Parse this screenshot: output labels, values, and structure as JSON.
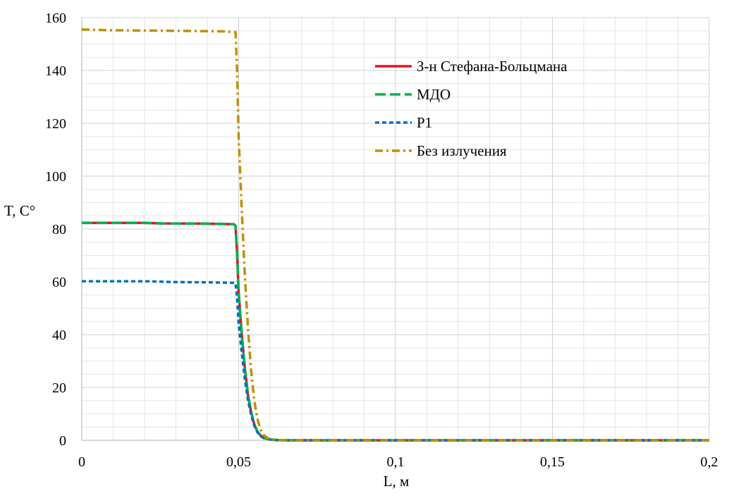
{
  "chart_data": {
    "type": "line",
    "title": "",
    "xlabel": "L, м",
    "ylabel": "T, C°",
    "xlim": [
      0,
      0.2
    ],
    "ylim": [
      0,
      160
    ],
    "x_ticks": [
      0,
      0.05,
      0.1,
      0.15,
      0.2
    ],
    "x_tick_labels": [
      "0",
      "0,05",
      "0,1",
      "0,15",
      "0,2"
    ],
    "y_ticks": [
      0,
      20,
      40,
      60,
      80,
      100,
      120,
      140,
      160
    ],
    "y_tick_labels": [
      "0",
      "20",
      "40",
      "60",
      "80",
      "100",
      "120",
      "140",
      "160"
    ],
    "grid": true,
    "legend_position": "top-right",
    "series": [
      {
        "name": "З-н Стефана-Больцмана",
        "color": "#e8141b",
        "dash": "solid",
        "x": [
          0,
          0.02,
          0.025,
          0.04,
          0.0485,
          0.049,
          0.0495,
          0.05,
          0.051,
          0.052,
          0.053,
          0.054,
          0.055,
          0.056,
          0.057,
          0.058,
          0.06,
          0.062,
          0.065,
          0.07,
          0.1,
          0.15,
          0.2
        ],
        "y": [
          82.3,
          82.3,
          82.1,
          82.0,
          81.8,
          81.2,
          71,
          56,
          40,
          27,
          17,
          10.5,
          6,
          3.3,
          1.8,
          0.9,
          0.3,
          0.1,
          0,
          0,
          0,
          0,
          0
        ]
      },
      {
        "name": "МДО",
        "color": "#00b050",
        "dash": "long-dash",
        "x": [
          0,
          0.02,
          0.025,
          0.04,
          0.0485,
          0.049,
          0.0495,
          0.05,
          0.051,
          0.052,
          0.053,
          0.054,
          0.055,
          0.056,
          0.057,
          0.058,
          0.06,
          0.062,
          0.065,
          0.07,
          0.1,
          0.15,
          0.2
        ],
        "y": [
          82.3,
          82.3,
          82.1,
          82.0,
          81.8,
          81.2,
          71,
          56,
          40,
          27,
          17,
          10.5,
          6,
          3.3,
          1.8,
          0.9,
          0.3,
          0.1,
          0,
          0,
          0,
          0,
          0
        ]
      },
      {
        "name": "P1",
        "color": "#0070c0",
        "dash": "short-dash",
        "x": [
          0,
          0.02,
          0.03,
          0.04,
          0.0485,
          0.049,
          0.0495,
          0.05,
          0.051,
          0.052,
          0.053,
          0.054,
          0.055,
          0.056,
          0.057,
          0.058,
          0.06,
          0.062,
          0.065,
          0.07,
          0.1,
          0.15,
          0.2
        ],
        "y": [
          60.2,
          60.2,
          59.9,
          59.8,
          59.6,
          59.5,
          54,
          44,
          33,
          23,
          15,
          9.5,
          5.5,
          3,
          1.6,
          0.8,
          0.3,
          0.1,
          0,
          0,
          0,
          0,
          0
        ]
      },
      {
        "name": "Без излучения",
        "color": "#c09000",
        "dash": "dash-dot",
        "x": [
          0,
          0.01,
          0.03,
          0.045,
          0.049,
          0.0495,
          0.05,
          0.051,
          0.052,
          0.053,
          0.054,
          0.055,
          0.056,
          0.057,
          0.058,
          0.059,
          0.06,
          0.062,
          0.065,
          0.07,
          0.1,
          0.15,
          0.2
        ],
        "y": [
          155.5,
          155.2,
          155.0,
          154.8,
          154.5,
          140,
          115,
          87,
          62,
          42,
          26,
          15,
          8,
          4,
          2,
          1,
          0.5,
          0.2,
          0,
          0,
          0,
          0,
          0
        ]
      }
    ]
  }
}
